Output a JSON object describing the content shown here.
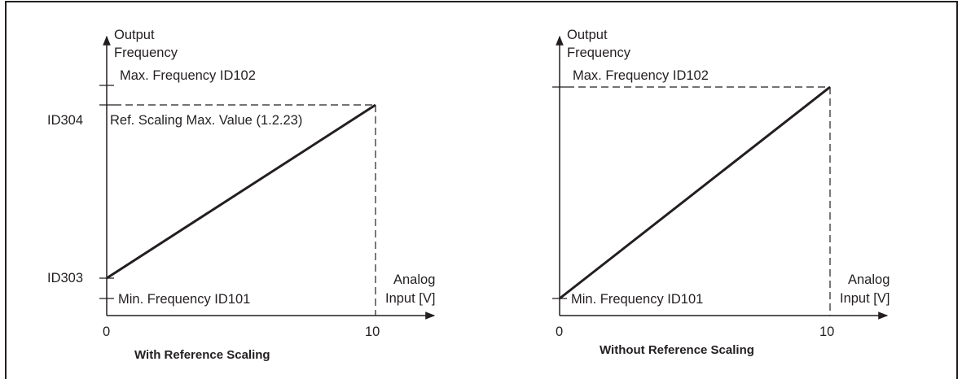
{
  "left_panel": {
    "y_label_line1": "Output",
    "y_label_line2": "Frequency",
    "max_freq_label": "Max. Frequency ID102",
    "ref_scaling_label": "Ref. Scaling Max. Value (1.2.23)",
    "id304_label": "ID304",
    "id303_label": "ID303",
    "min_freq_label": "Min. Frequency ID101",
    "x_label_line1": "Analog",
    "x_label_line2": "Input [V]",
    "tick_zero": "0",
    "tick_ten": "10",
    "caption": "With Reference Scaling"
  },
  "right_panel": {
    "y_label_line1": "Output",
    "y_label_line2": "Frequency",
    "max_freq_label": "Max. Frequency ID102",
    "min_freq_label": "Min. Frequency ID101",
    "x_label_line1": "Analog",
    "x_label_line2": "Input [V]",
    "tick_zero": "0",
    "tick_ten": "10",
    "caption": "Without Reference Scaling"
  },
  "colors": {
    "line": "#231f20",
    "frame": "#231f20"
  }
}
